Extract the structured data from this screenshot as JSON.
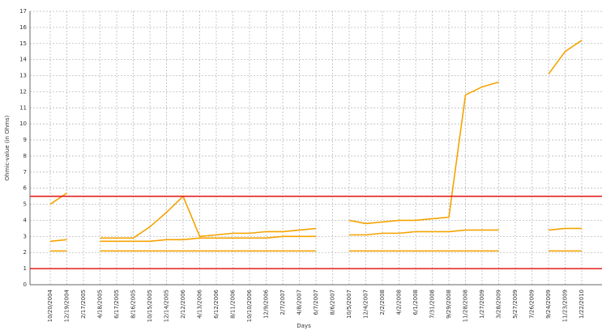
{
  "chart_data": {
    "type": "line",
    "y_label": "Ohmic-value (in Ohms)",
    "x_label": "Days",
    "categories": [
      "10/20/2004",
      "12/19/2004",
      "2/17/2005",
      "4/18/2005",
      "6/17/2005",
      "8/16/2005",
      "10/15/2005",
      "12/14/2005",
      "2/12/2006",
      "4/13/2006",
      "6/12/2006",
      "8/11/2006",
      "10/10/2006",
      "12/9/2006",
      "2/7/2007",
      "4/8/2007",
      "6/7/2007",
      "8/6/2007",
      "10/5/2007",
      "12/4/2007",
      "2/2/2008",
      "4/2/2008",
      "6/1/2008",
      "7/31/2008",
      "9/29/2008",
      "11/28/2008",
      "1/27/2009",
      "3/28/2009",
      "5/27/2009",
      "7/26/2009",
      "9/24/2009",
      "11/23/2009",
      "1/22/2010"
    ],
    "series": [
      {
        "color": "#f5a300",
        "values": [
          5.0,
          5.7,
          null,
          2.9,
          2.9,
          2.9,
          3.6,
          4.5,
          5.5,
          3.0,
          3.1,
          3.2,
          3.2,
          3.3,
          3.3,
          3.4,
          3.5,
          null,
          4.0,
          3.8,
          3.9,
          4.0,
          4.0,
          4.1,
          4.2,
          11.8,
          12.3,
          12.6,
          null,
          null,
          13.1,
          14.5,
          15.2
        ]
      },
      {
        "color": "#f5a300",
        "values": [
          2.7,
          2.8,
          null,
          2.7,
          2.7,
          2.7,
          2.7,
          2.8,
          2.8,
          2.9,
          2.9,
          2.9,
          2.9,
          2.9,
          3.0,
          3.0,
          3.0,
          null,
          3.1,
          3.1,
          3.2,
          3.2,
          3.3,
          3.3,
          3.3,
          3.4,
          3.4,
          3.4,
          null,
          null,
          3.4,
          3.5,
          3.5
        ]
      },
      {
        "color": "#f5a300",
        "values": [
          2.1,
          2.1,
          null,
          2.1,
          2.1,
          2.1,
          2.1,
          2.1,
          2.1,
          2.1,
          2.1,
          2.1,
          2.1,
          2.1,
          2.1,
          2.1,
          2.1,
          null,
          2.1,
          2.1,
          2.1,
          2.1,
          2.1,
          2.1,
          2.1,
          2.1,
          2.1,
          2.1,
          null,
          null,
          2.1,
          2.1,
          2.1
        ]
      }
    ],
    "limits": [
      {
        "value": 5.5,
        "color": "#e31e1e"
      },
      {
        "value": 1,
        "color": "#e31e1e"
      }
    ],
    "ylim": [
      0,
      17
    ],
    "yticks": [
      0,
      1,
      2,
      3,
      4,
      5,
      6,
      7,
      8,
      9,
      10,
      11,
      12,
      13,
      14,
      15,
      16,
      17
    ],
    "grid": true
  }
}
